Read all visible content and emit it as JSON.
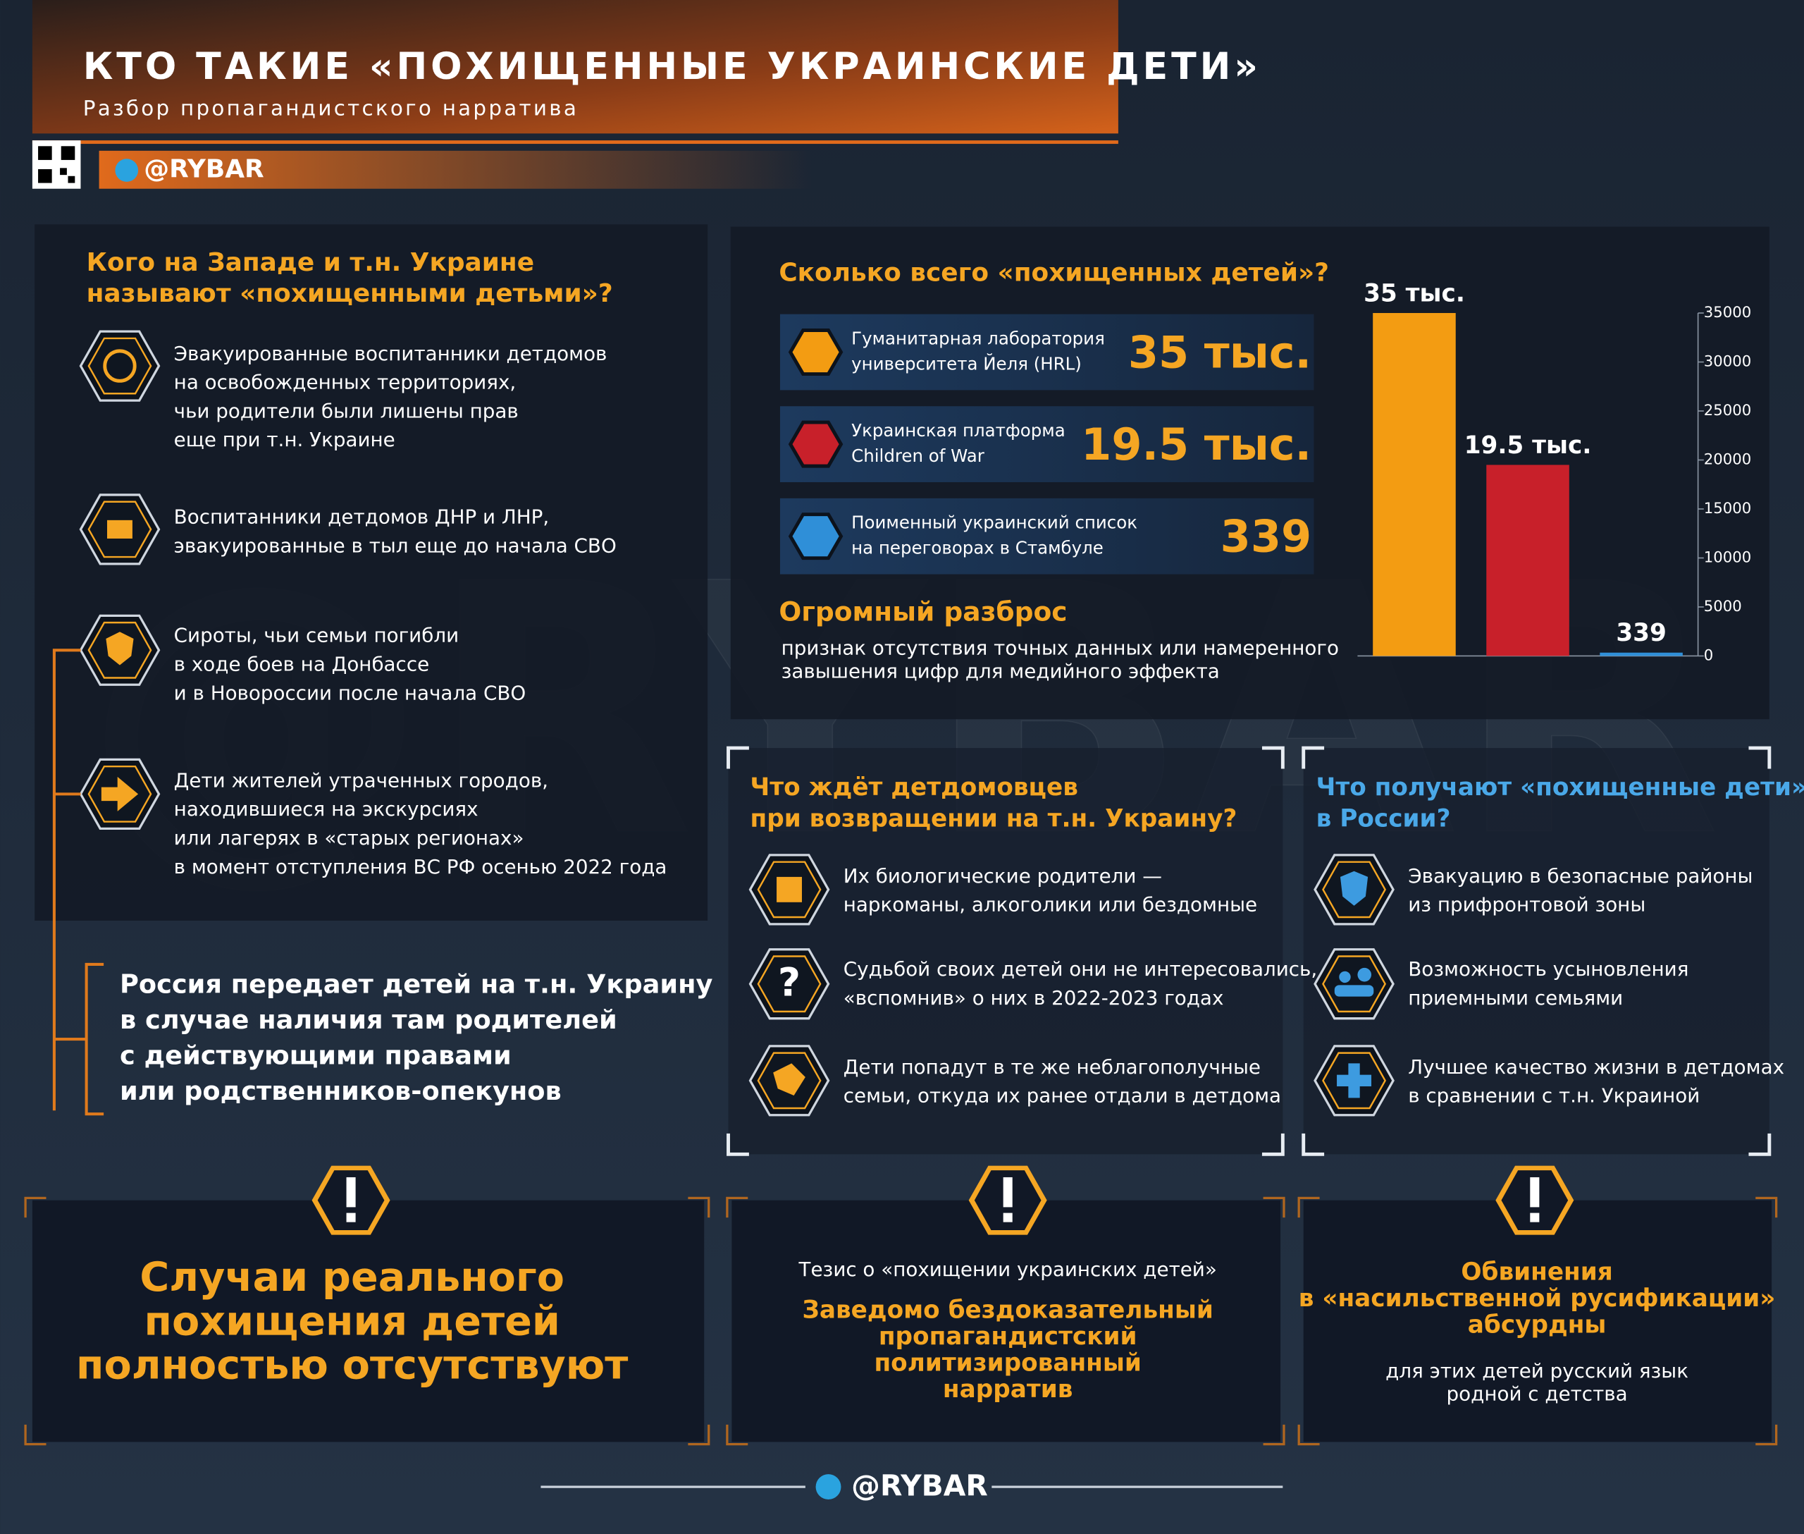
{
  "header": {
    "title": "КТО ТАКИЕ «ПОХИЩЕННЫЕ УКРАИНСКИЕ ДЕТИ»",
    "subtitle": "Разбор пропагандистского нарратива",
    "handle": "@RYBAR"
  },
  "left": {
    "title": "Кого на Западе и т.н. Украине\nназывают «похищенными детьми»?",
    "items": [
      "Эвакуированные воспитанники детдомов\nна освобожденных территориях,\nчьи родители были лишены прав\nеще при т.н. Украине",
      "Воспитанники детдомов ДНР и ЛНР,\nэвакуированные в тыл еще до начала СВО",
      "Сироты, чьи семьи погибли\nв ходе боев на Донбассе\nи в Новороссии после начала СВО",
      "Дети жителей утраченных городов,\nнаходившиеся на экскурсиях\nили лагерях в «старых регионах»\nв момент отступления ВС РФ осенью 2022 года"
    ],
    "note": "Россия передает детей на т.н. Украину\nв случае наличия там родителей\nс действующими правами\nили родственников-опекунов"
  },
  "chart_data": {
    "type": "bar",
    "title": "Сколько всего «похищенных детей»?",
    "categories": [
      "Гуманитарная лаборатория\nуниверситета Йеля (HRL)",
      "Украинская платформа\nChildren of War",
      "Поименный украинский список\nна переговорах в Стамбуле"
    ],
    "values": [
      35000,
      19500,
      339
    ],
    "value_labels": [
      "35 тыс.",
      "19.5 тыс.",
      "339"
    ],
    "colors": [
      "#f39c12",
      "#c8202a",
      "#2f8fd8"
    ],
    "ylim": [
      0,
      35000
    ],
    "yticks": [
      0,
      5000,
      10000,
      15000,
      20000,
      25000,
      30000,
      35000
    ]
  },
  "stats": {
    "spread_title": "Огромный разброс",
    "spread_text": "признак отсутствия точных данных или намеренного\nзавышения цифр для медийного эффекта"
  },
  "ukraine": {
    "title": "Что ждёт детдомовцев\nпри возвращении на т.н. Украину?",
    "items": [
      "Их биологические родители —\nнаркоманы, алкоголики или бездомные",
      "Судьбой своих детей они не интересовались,\n«вспомнив» о них в 2022-2023 годах",
      "Дети попадут в те же неблагополучные\nсемьи, откуда их ранее отдали в детдома"
    ]
  },
  "russia": {
    "title": "Что получают «похищенные дети»\nв России?",
    "items": [
      "Эвакуацию в безопасные районы\nиз прифронтовой зоны",
      "Возможность усыновления\nприемными семьями",
      "Лучшее качество жизни в детдомах\nв сравнении с т.н. Украиной"
    ]
  },
  "bottom": [
    {
      "text": "Случаи реального\nпохищения детей\nполностью отсутствуют"
    },
    {
      "lead": "Тезис о «похищении украинских детей»",
      "text": "Заведомо бездоказательный\nпропагандистский\nполитизированный\nнарратив"
    },
    {
      "title": "Обвинения\nв «насильственной русификации»\nабсурдны",
      "text": "для этих детей русский язык\nродной с детства"
    }
  ]
}
